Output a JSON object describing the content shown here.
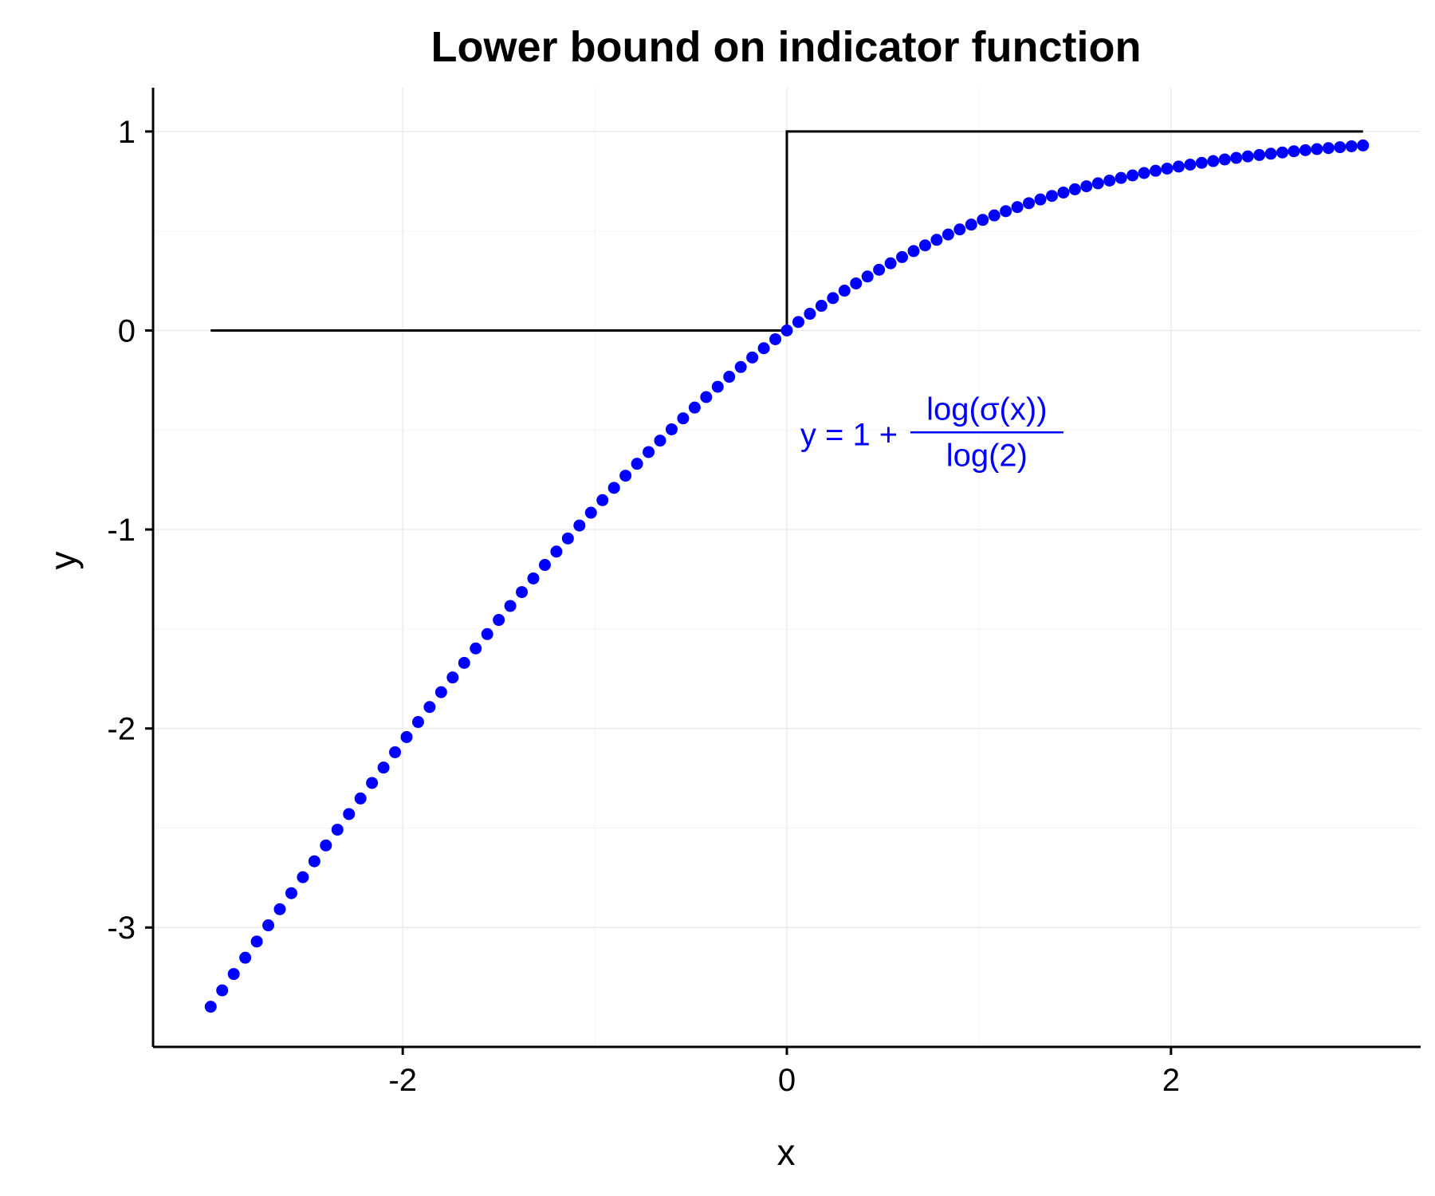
{
  "chart_data": {
    "type": "scatter",
    "title": "Lower bound on indicator function",
    "xlabel": "x",
    "ylabel": "y",
    "xlim": [
      -3.3,
      3.3
    ],
    "ylim": [
      -3.6,
      1.22
    ],
    "x_ticks": [
      -2,
      0,
      2
    ],
    "x_tick_labels": [
      "-2",
      "0",
      "2"
    ],
    "y_ticks": [
      -3,
      -2,
      -1,
      0,
      1
    ],
    "y_tick_labels": [
      "-3",
      "-2",
      "-1",
      "0",
      "1"
    ],
    "grid": true,
    "series": [
      {
        "kind": "step",
        "color": "#000000",
        "x": [
          -3,
          0,
          0,
          3
        ],
        "y": [
          0,
          0,
          1,
          1
        ]
      },
      {
        "kind": "points",
        "color": "#0000ff",
        "x_start": -3,
        "x_end": 3,
        "count": 101,
        "formula": "1 + log(sigmoid(x)) / log(2)"
      }
    ],
    "annotation": {
      "color": "#0000ff",
      "x": 0.07,
      "y": -0.52,
      "lhs": "y = 1 +",
      "numerator": "log(σ(x))",
      "denominator": "log(2)"
    }
  }
}
